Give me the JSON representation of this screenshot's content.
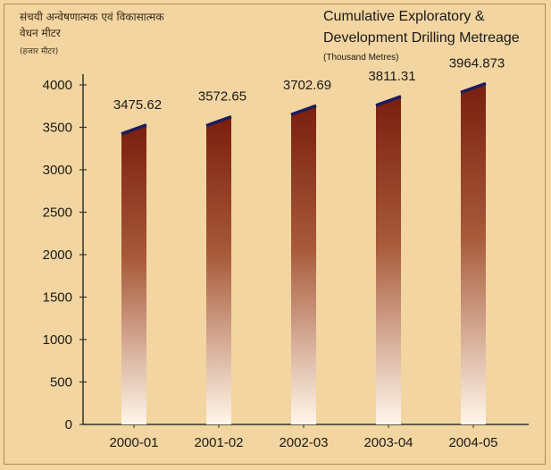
{
  "header": {
    "title_hi_line1": "संचयी अन्वेषणात्मक एवं विकासात्मक",
    "title_hi_line2": "वेधन मीटर",
    "unit_hi": "(हजार मीटर)",
    "title_en_line1": "Cumulative Exploratory &",
    "title_en_line2": "Development Drilling Metreage",
    "unit_en": "(Thousand Metres)"
  },
  "colors": {
    "bar_top": "#7a1e0e",
    "bar_bottom": "#fff6ea",
    "bar_cap": "#1c1c5e",
    "background": "#f2d5a0",
    "axis": "#333333"
  },
  "chart_data": {
    "type": "bar",
    "categories": [
      "2000-01",
      "2001-02",
      "2002-03",
      "2003-04",
      "2004-05"
    ],
    "values": [
      3475.62,
      3572.65,
      3702.69,
      3811.31,
      3964.873
    ],
    "value_labels": [
      "3475.62",
      "3572.65",
      "3702.69",
      "3811.31",
      "3964.873"
    ],
    "yticks": [
      0,
      500,
      1000,
      1500,
      2000,
      2500,
      3000,
      3500,
      4000
    ],
    "ylim": [
      0,
      4000
    ],
    "title": "Cumulative Exploratory & Development Drilling Metreage",
    "ylabel": "(Thousand Metres)",
    "xlabel": "",
    "grid": false
  }
}
